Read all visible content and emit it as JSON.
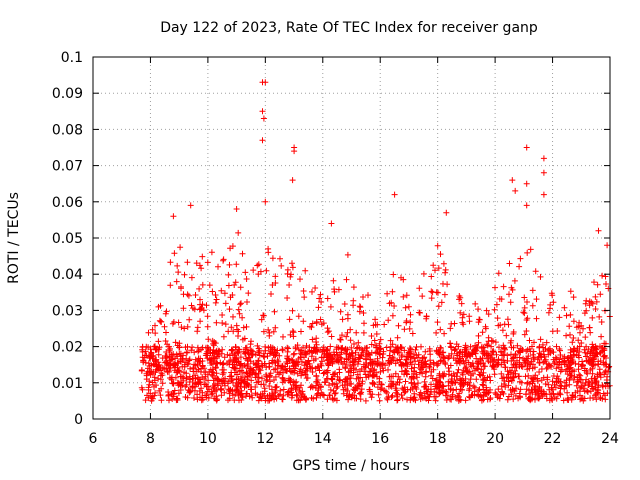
{
  "chart_data": {
    "type": "scatter",
    "title": "Day 122 of 2023, Rate Of TEC Index for receiver ganp",
    "xlabel": "GPS time / hours",
    "ylabel": "ROTI / TECUs",
    "xlim": [
      6,
      24
    ],
    "ylim": [
      0,
      0.1
    ],
    "xticks": [
      6,
      8,
      10,
      12,
      14,
      16,
      18,
      20,
      22,
      24
    ],
    "yticks": [
      0,
      0.01,
      0.02,
      0.03,
      0.04,
      0.05,
      0.06,
      0.07,
      0.08,
      0.09,
      0.1
    ],
    "xtick_labels": [
      "6",
      "8",
      "10",
      "12",
      "14",
      "16",
      "18",
      "20",
      "22",
      "24"
    ],
    "ytick_labels": [
      "0",
      "0.01",
      "0.02",
      "0.03",
      "0.04",
      "0.05",
      "0.06",
      "0.07",
      "0.08",
      "0.09",
      "0.1"
    ],
    "grid": true,
    "marker": "+",
    "color": "#ff0000",
    "series": [
      {
        "name": "ROTI",
        "data_start_hour": 7.7,
        "data_end_hour": 24,
        "typical_range": [
          0.005,
          0.02
        ],
        "notable_points": [
          {
            "x": 11.9,
            "y": 0.093
          },
          {
            "x": 12.0,
            "y": 0.093
          },
          {
            "x": 11.9,
            "y": 0.085
          },
          {
            "x": 11.95,
            "y": 0.083
          },
          {
            "x": 11.9,
            "y": 0.077
          },
          {
            "x": 13.0,
            "y": 0.075
          },
          {
            "x": 13.0,
            "y": 0.074
          },
          {
            "x": 12.95,
            "y": 0.066
          },
          {
            "x": 12.0,
            "y": 0.06
          },
          {
            "x": 9.4,
            "y": 0.059
          },
          {
            "x": 11.0,
            "y": 0.058
          },
          {
            "x": 16.5,
            "y": 0.062
          },
          {
            "x": 18.3,
            "y": 0.057
          },
          {
            "x": 20.6,
            "y": 0.066
          },
          {
            "x": 20.7,
            "y": 0.063
          },
          {
            "x": 21.1,
            "y": 0.075
          },
          {
            "x": 21.1,
            "y": 0.065
          },
          {
            "x": 21.1,
            "y": 0.059
          },
          {
            "x": 21.7,
            "y": 0.072
          },
          {
            "x": 21.7,
            "y": 0.068
          },
          {
            "x": 21.7,
            "y": 0.062
          },
          {
            "x": 14.3,
            "y": 0.054
          },
          {
            "x": 8.8,
            "y": 0.056
          },
          {
            "x": 23.6,
            "y": 0.052
          },
          {
            "x": 23.9,
            "y": 0.048
          }
        ]
      }
    ]
  }
}
